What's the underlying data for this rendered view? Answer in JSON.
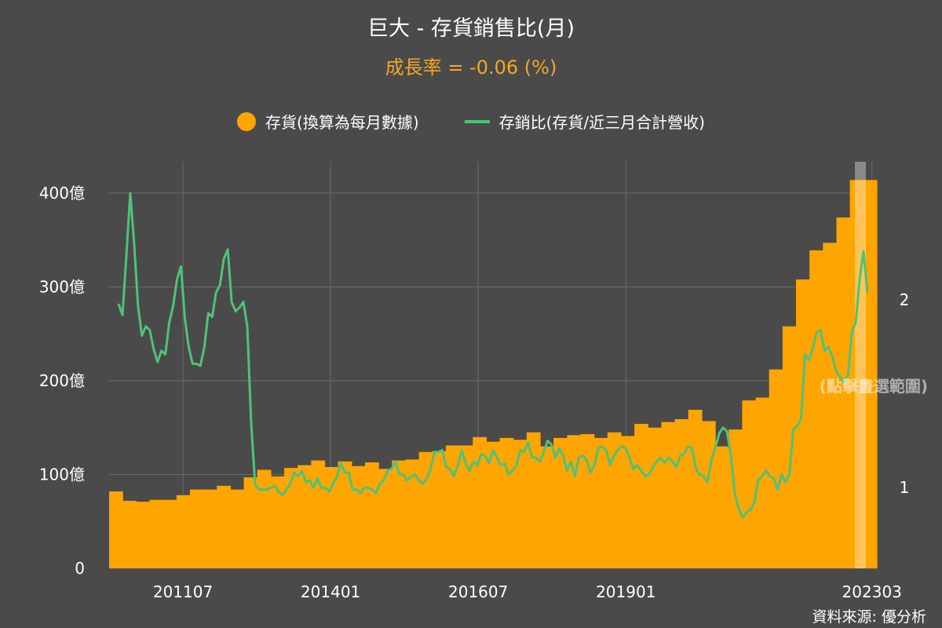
{
  "chart_data": {
    "type": "bar+line",
    "title": "巨大 - 存貨銷售比(月)",
    "subtitle": "成長率 = -0.06 (%)",
    "x_ticks": [
      "201107",
      "201401",
      "201607",
      "201901",
      "202303"
    ],
    "y_left_ticks": [
      "0",
      "100億",
      "200億",
      "300億",
      "400億"
    ],
    "y_left_range": [
      0,
      400
    ],
    "y_right_ticks": [
      "1",
      "2"
    ],
    "y_right_range": [
      0.57,
      2.57
    ],
    "series": [
      {
        "name": "存貨(換算為每月數據)",
        "type": "bar",
        "color": "#ffa500",
        "quarterly_values": [
          82,
          72,
          71,
          73,
          73,
          78,
          84,
          84,
          88,
          84,
          97,
          105,
          98,
          107,
          110,
          115,
          108,
          114,
          109,
          113,
          106,
          115,
          116,
          124,
          125,
          131,
          131,
          140,
          135,
          139,
          137,
          145,
          130,
          139,
          142,
          143,
          139,
          145,
          141,
          154,
          150,
          156,
          159,
          169,
          157,
          130,
          148,
          179,
          182,
          212,
          258,
          308,
          339,
          347,
          374,
          414,
          414
        ]
      },
      {
        "name": "存銷比(存貨/近三月合計營收)",
        "type": "line",
        "color": "#4ec27a",
        "x_range": [
          "201004",
          "202304"
        ],
        "values": [
          1.98,
          1.92,
          2.23,
          2.57,
          2.3,
          1.97,
          1.81,
          1.86,
          1.84,
          1.74,
          1.67,
          1.73,
          1.71,
          1.88,
          1.97,
          2.11,
          2.18,
          1.9,
          1.75,
          1.66,
          1.66,
          1.65,
          1.75,
          1.93,
          1.91,
          2.04,
          2.08,
          2.22,
          2.27,
          1.99,
          1.94,
          1.96,
          1.99,
          1.86,
          1.35,
          1.02,
          0.99,
          0.99,
          0.99,
          1.0,
          1.01,
          0.98,
          0.96,
          0.99,
          1.02,
          1.08,
          1.06,
          1.09,
          1.03,
          1.04,
          1.0,
          1.05,
          1.0,
          1.0,
          0.98,
          1.02,
          1.06,
          1.13,
          1.08,
          1.08,
          0.99,
          0.99,
          0.97,
          1.0,
          1.0,
          0.99,
          0.97,
          1.02,
          1.04,
          1.09,
          1.1,
          1.14,
          1.07,
          1.07,
          1.04,
          1.06,
          1.07,
          1.04,
          1.02,
          1.05,
          1.1,
          1.19,
          1.19,
          1.2,
          1.11,
          1.1,
          1.06,
          1.12,
          1.2,
          1.13,
          1.09,
          1.14,
          1.12,
          1.18,
          1.17,
          1.13,
          1.2,
          1.16,
          1.12,
          1.13,
          1.07,
          1.09,
          1.12,
          1.2,
          1.19,
          1.24,
          1.16,
          1.16,
          1.14,
          1.19,
          1.25,
          1.23,
          1.16,
          1.21,
          1.17,
          1.09,
          1.14,
          1.06,
          1.16,
          1.17,
          1.15,
          1.08,
          1.12,
          1.21,
          1.22,
          1.2,
          1.12,
          1.17,
          1.2,
          1.22,
          1.21,
          1.16,
          1.1,
          1.12,
          1.09,
          1.06,
          1.07,
          1.11,
          1.14,
          1.16,
          1.13,
          1.16,
          1.14,
          1.11,
          1.17,
          1.18,
          1.22,
          1.21,
          1.1,
          1.07,
          1.06,
          1.03,
          1.15,
          1.21,
          1.29,
          1.32,
          1.3,
          1.17,
          0.97,
          0.89,
          0.84,
          0.87,
          0.88,
          0.92,
          1.04,
          1.06,
          1.09,
          1.06,
          1.05,
          0.99,
          1.07,
          1.03,
          1.07,
          1.31,
          1.33,
          1.37,
          1.71,
          1.68,
          1.74,
          1.83,
          1.84,
          1.73,
          1.75,
          1.7,
          1.62,
          1.59,
          1.56,
          1.6,
          1.83,
          1.88,
          2.11,
          2.26,
          2.04
        ]
      }
    ],
    "legend": "top",
    "grid": true
  },
  "hint": "(點擊畫選範圍)",
  "source": "資料來源: 優分析"
}
